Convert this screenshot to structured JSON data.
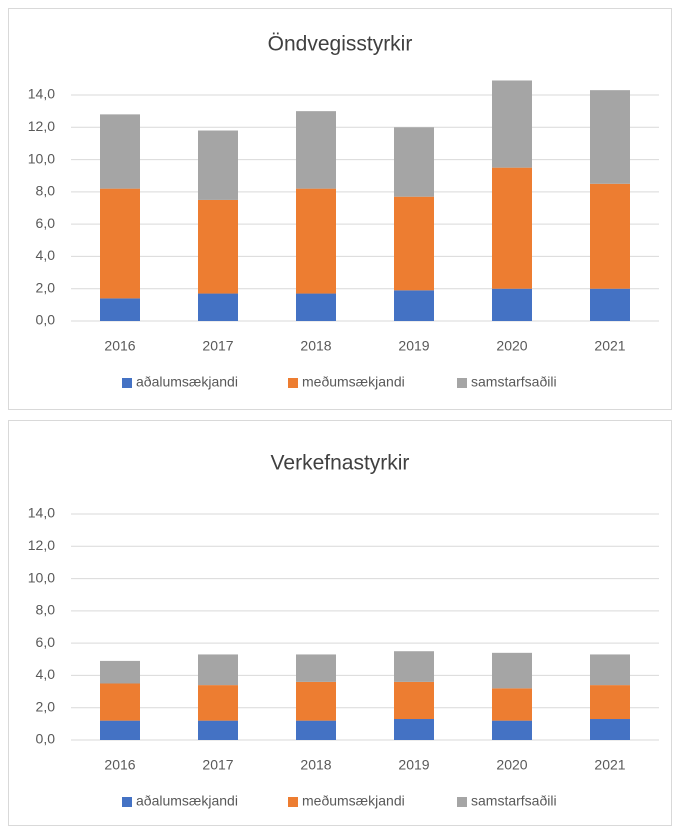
{
  "chart_data": [
    {
      "type": "stacked_bar",
      "title": "Öndvegisstyrkir",
      "categories": [
        "2016",
        "2017",
        "2018",
        "2019",
        "2020",
        "2021"
      ],
      "series": [
        {
          "name": "aðalumsækjandi",
          "color": "#4472c4",
          "values": [
            1.4,
            1.7,
            1.7,
            1.9,
            2.0,
            2.0
          ]
        },
        {
          "name": "meðumsækjandi",
          "color": "#ed7d31",
          "values": [
            6.8,
            5.8,
            6.5,
            5.8,
            7.5,
            6.5
          ]
        },
        {
          "name": "samstarfsaðili",
          "color": "#a5a5a5",
          "values": [
            4.6,
            4.3,
            4.8,
            4.3,
            5.4,
            5.8
          ]
        }
      ],
      "ylim": [
        0,
        14
      ],
      "yticks": [
        {
          "value": 0,
          "label": "0,0"
        },
        {
          "value": 2,
          "label": "2,0"
        },
        {
          "value": 4,
          "label": "4,0"
        },
        {
          "value": 6,
          "label": "6,0"
        },
        {
          "value": 8,
          "label": "8,0"
        },
        {
          "value": 10,
          "label": "10,0"
        },
        {
          "value": 12,
          "label": "12,0"
        },
        {
          "value": 14,
          "label": "14,0"
        }
      ],
      "grid": true,
      "legend": "bottom"
    },
    {
      "type": "stacked_bar",
      "title": "Verkefnastyrkir",
      "categories": [
        "2016",
        "2017",
        "2018",
        "2019",
        "2020",
        "2021"
      ],
      "series": [
        {
          "name": "aðalumsækjandi",
          "color": "#4472c4",
          "values": [
            1.2,
            1.2,
            1.2,
            1.3,
            1.2,
            1.3
          ]
        },
        {
          "name": "meðumsækjandi",
          "color": "#ed7d31",
          "values": [
            2.3,
            2.2,
            2.4,
            2.3,
            2.0,
            2.1
          ]
        },
        {
          "name": "samstarfsaðili",
          "color": "#a5a5a5",
          "values": [
            1.4,
            1.9,
            1.7,
            1.9,
            2.2,
            1.9
          ]
        }
      ],
      "ylim": [
        0,
        14
      ],
      "yticks": [
        {
          "value": 0,
          "label": "0,0"
        },
        {
          "value": 2,
          "label": "2,0"
        },
        {
          "value": 4,
          "label": "4,0"
        },
        {
          "value": 6,
          "label": "6,0"
        },
        {
          "value": 8,
          "label": "8,0"
        },
        {
          "value": 10,
          "label": "10,0"
        },
        {
          "value": 12,
          "label": "12,0"
        },
        {
          "value": 14,
          "label": "14,0"
        }
      ],
      "grid": true,
      "legend": "bottom"
    }
  ]
}
